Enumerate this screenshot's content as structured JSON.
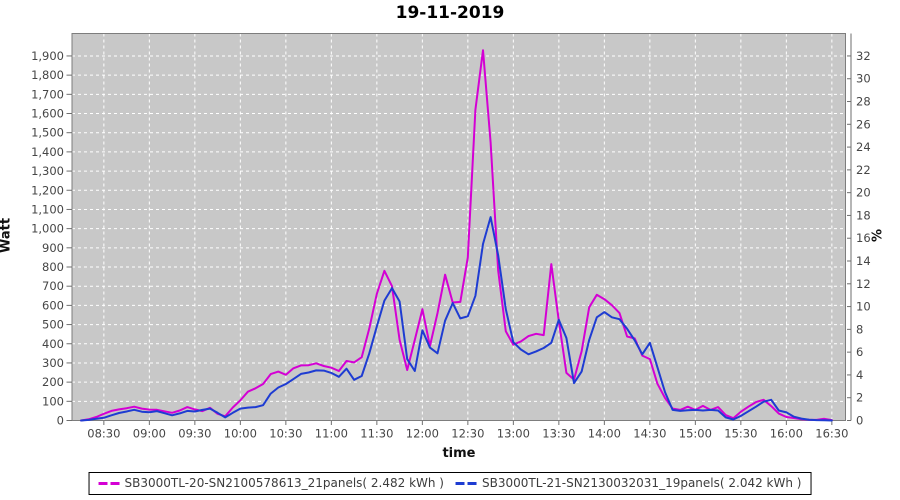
{
  "title": "19-11-2019",
  "chart_data": {
    "type": "line",
    "title": "19-11-2019",
    "xlabel": "time",
    "ylabel_left": "Watt",
    "ylabel_right": "%",
    "grid": true,
    "legend_position": "bottom",
    "colors": {
      "plot_bg": "#c8c8c8",
      "plot_border": "#7d7d7d",
      "gridline": "#ffffff",
      "tick": "#6e6e6e",
      "tick_label": "#464646"
    },
    "x_axis": {
      "range_min": "08:09",
      "range_max": "16:39",
      "ticks": [
        "08:30",
        "09:00",
        "09:30",
        "10:00",
        "10:30",
        "11:00",
        "11:30",
        "12:00",
        "12:30",
        "13:00",
        "13:30",
        "14:00",
        "14:30",
        "15:00",
        "15:30",
        "16:00",
        "16:30"
      ]
    },
    "y_axis_left": {
      "min": 0,
      "max": 2017,
      "tick_step": 100,
      "tick_max": 1900
    },
    "y_axis_right": {
      "min": 0,
      "max": 32,
      "tick_step": 2
    },
    "x": [
      "08:15",
      "08:20",
      "08:25",
      "08:30",
      "08:35",
      "08:40",
      "08:45",
      "08:50",
      "08:55",
      "09:00",
      "09:05",
      "09:10",
      "09:15",
      "09:20",
      "09:25",
      "09:30",
      "09:35",
      "09:40",
      "09:45",
      "09:50",
      "09:55",
      "10:00",
      "10:05",
      "10:10",
      "10:15",
      "10:20",
      "10:25",
      "10:30",
      "10:35",
      "10:40",
      "10:45",
      "10:50",
      "10:55",
      "11:00",
      "11:05",
      "11:10",
      "11:15",
      "11:20",
      "11:25",
      "11:30",
      "11:35",
      "11:40",
      "11:45",
      "11:50",
      "11:55",
      "12:00",
      "12:05",
      "12:10",
      "12:15",
      "12:20",
      "12:25",
      "12:30",
      "12:35",
      "12:40",
      "12:45",
      "12:50",
      "12:55",
      "13:00",
      "13:05",
      "13:10",
      "13:15",
      "13:20",
      "13:25",
      "13:30",
      "13:35",
      "13:40",
      "13:45",
      "13:50",
      "13:55",
      "14:00",
      "14:05",
      "14:10",
      "14:15",
      "14:20",
      "14:25",
      "14:30",
      "14:35",
      "14:40",
      "14:45",
      "14:50",
      "14:55",
      "15:00",
      "15:05",
      "15:10",
      "15:15",
      "15:20",
      "15:25",
      "15:30",
      "15:35",
      "15:40",
      "15:45",
      "15:50",
      "15:55",
      "16:00",
      "16:05",
      "16:10",
      "16:15",
      "16:20",
      "16:25",
      "16:30"
    ],
    "series": [
      {
        "name": "SB3000TL-20-SN2100578613_21panels( 2.482 kWh )",
        "energy_kwh": 2.482,
        "color": "#d400d4",
        "values": [
          0,
          6,
          18,
          35,
          50,
          58,
          64,
          72,
          62,
          57,
          56,
          48,
          40,
          52,
          70,
          58,
          49,
          66,
          35,
          22,
          68,
          105,
          150,
          168,
          190,
          242,
          255,
          238,
          272,
          287,
          288,
          298,
          284,
          275,
          258,
          310,
          303,
          330,
          480,
          660,
          780,
          700,
          420,
          263,
          420,
          580,
          388,
          560,
          760,
          615,
          618,
          850,
          1620,
          1930,
          1450,
          780,
          465,
          395,
          412,
          440,
          452,
          445,
          815,
          520,
          248,
          213,
          360,
          590,
          655,
          632,
          601,
          560,
          438,
          428,
          338,
          320,
          192,
          118,
          62,
          55,
          72,
          55,
          76,
          55,
          70,
          28,
          12,
          46,
          72,
          96,
          108,
          75,
          36,
          18,
          13,
          7,
          4,
          3,
          9,
          2
        ]
      },
      {
        "name": "SB3000TL-21-SN2130032031_19panels( 2.042 kWh )",
        "energy_kwh": 2.042,
        "color": "#1e3cd2",
        "values": [
          0,
          3,
          9,
          14,
          27,
          39,
          47,
          56,
          46,
          43,
          49,
          38,
          27,
          37,
          50,
          47,
          55,
          62,
          40,
          16,
          40,
          62,
          67,
          70,
          80,
          140,
          172,
          190,
          216,
          243,
          250,
          261,
          260,
          248,
          228,
          270,
          212,
          232,
          350,
          490,
          625,
          690,
          620,
          320,
          258,
          470,
          380,
          350,
          520,
          612,
          532,
          543,
          650,
          920,
          1060,
          860,
          580,
          408,
          370,
          345,
          360,
          378,
          405,
          525,
          430,
          195,
          255,
          420,
          538,
          565,
          538,
          528,
          478,
          418,
          345,
          405,
          278,
          148,
          55,
          50,
          53,
          55,
          52,
          55,
          52,
          16,
          5,
          24,
          48,
          72,
          98,
          108,
          52,
          42,
          20,
          10,
          4,
          2,
          1,
          0
        ]
      }
    ]
  }
}
